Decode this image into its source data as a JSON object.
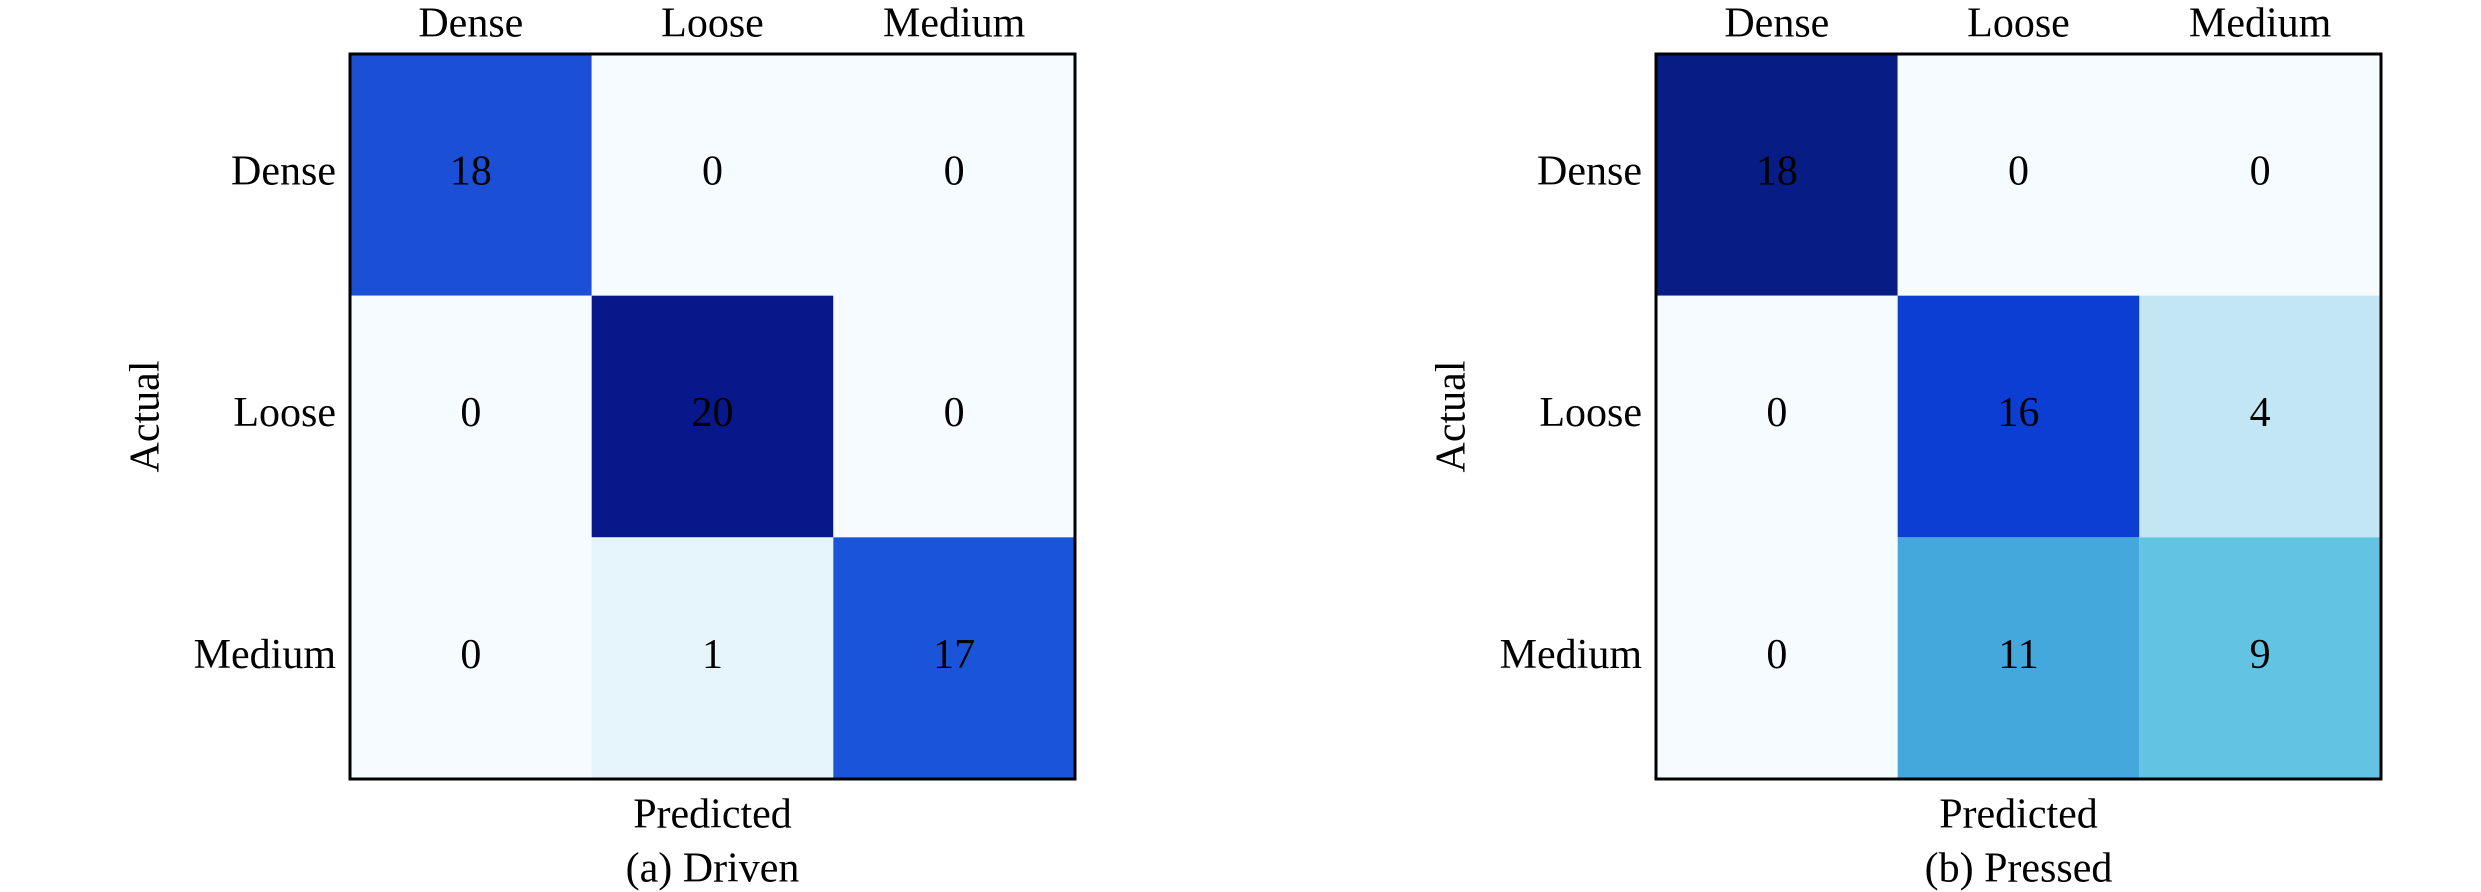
{
  "chart_data": [
    {
      "type": "heatmap",
      "title": "(a) Driven",
      "xlabel": "Predicted",
      "ylabel": "Actual",
      "x_categories": [
        "Dense",
        "Loose",
        "Medium"
      ],
      "y_categories": [
        "Dense",
        "Loose",
        "Medium"
      ],
      "values": [
        [
          18,
          0,
          0
        ],
        [
          0,
          20,
          0
        ],
        [
          0,
          1,
          17
        ]
      ],
      "colors": [
        [
          "#1a4fd6",
          "#f5fbfe",
          "#f5fbfe"
        ],
        [
          "#f5fbfe",
          "#08188a",
          "#f5fbfe"
        ],
        [
          "#f5fbfe",
          "#e6f4fb",
          "#1a55d9"
        ]
      ],
      "text_colors": [
        [
          "#ffffff",
          "#000000",
          "#000000"
        ],
        [
          "#000000",
          "#ffffff",
          "#000000"
        ],
        [
          "#000000",
          "#000000",
          "#ffffff"
        ]
      ]
    },
    {
      "type": "heatmap",
      "title": "(b) Pressed",
      "xlabel": "Predicted",
      "ylabel": "Actual",
      "x_categories": [
        "Dense",
        "Loose",
        "Medium"
      ],
      "y_categories": [
        "Dense",
        "Loose",
        "Medium"
      ],
      "values": [
        [
          18,
          0,
          0
        ],
        [
          0,
          16,
          4
        ],
        [
          0,
          11,
          9
        ]
      ],
      "colors": [
        [
          "#081c86",
          "#f5fbfe",
          "#f5fbfe"
        ],
        [
          "#f5fbfe",
          "#0c3ed4",
          "#c2e6f3"
        ],
        [
          "#f5fbfe",
          "#45a8dc",
          "#62c3e2"
        ]
      ],
      "text_colors": [
        [
          "#ffffff",
          "#000000",
          "#000000"
        ],
        [
          "#000000",
          "#ffffff",
          "#000000"
        ],
        [
          "#000000",
          "#000000",
          "#ffffff"
        ]
      ]
    }
  ]
}
